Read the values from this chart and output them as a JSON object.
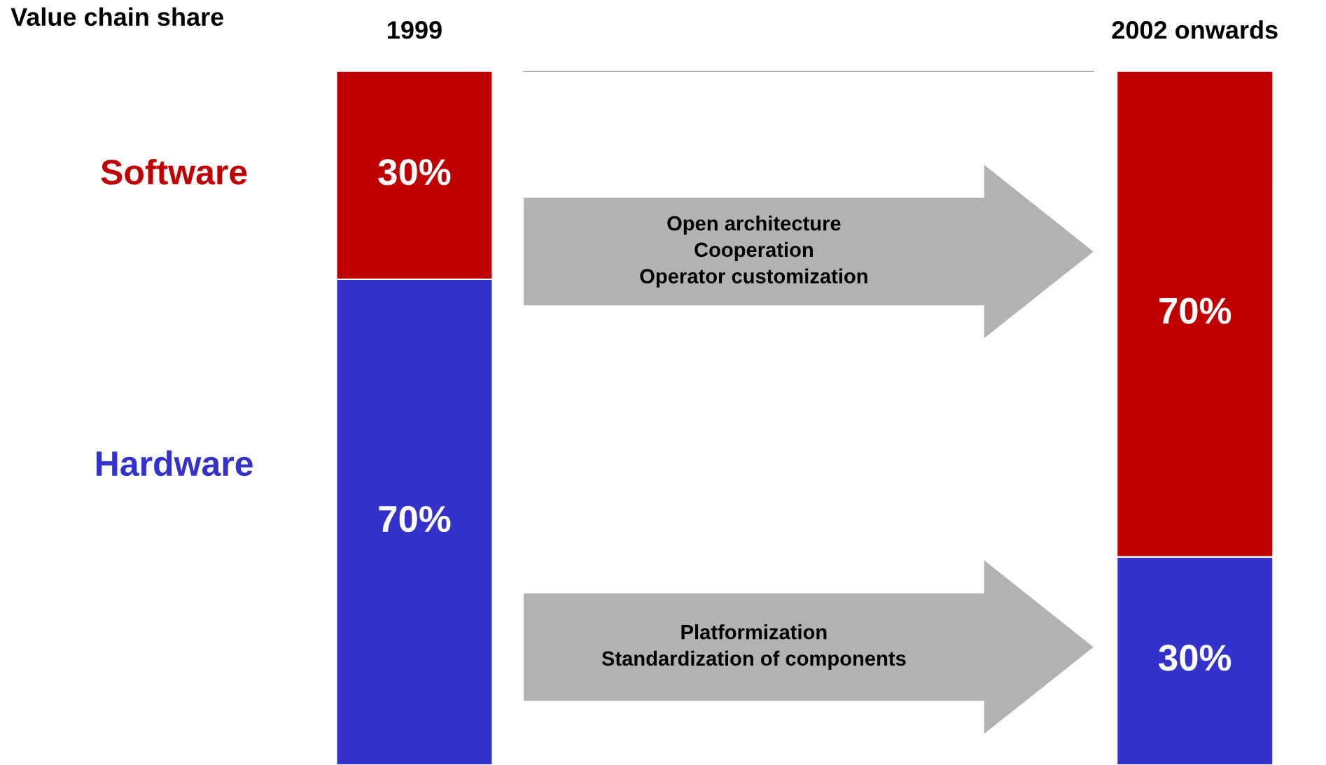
{
  "chart_data": {
    "type": "bar",
    "stacked": true,
    "title": "Value chain share",
    "categories": [
      "1999",
      "2002 onwards"
    ],
    "series": [
      {
        "name": "Hardware",
        "color": "#3333cc",
        "values": [
          70,
          30
        ],
        "value_labels": [
          "70%",
          "30%"
        ]
      },
      {
        "name": "Software",
        "color": "#c00000",
        "values": [
          30,
          70
        ],
        "value_labels": [
          "30%",
          "70%"
        ]
      }
    ],
    "annotations": [
      "Open architecture\nCooperation\nOperator customization",
      "Platformization\nStandardization of components"
    ]
  }
}
